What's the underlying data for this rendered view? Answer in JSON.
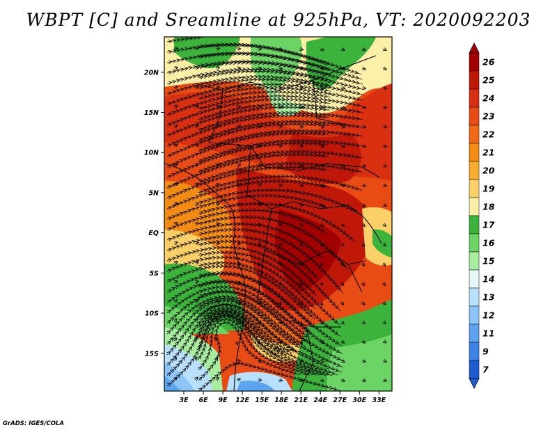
{
  "title": "WBPT [C] and Sreamline at 925hPa, VT: 2020092203",
  "credit": "GrADS: IGES/COLA",
  "map": {
    "lat_labels": [
      "20N",
      "15N",
      "10N",
      "5N",
      "EQ",
      "5S",
      "10S",
      "15S"
    ],
    "lat_values": [
      20,
      15,
      10,
      5,
      0,
      -5,
      -10,
      -15
    ],
    "lon_labels": [
      "3E",
      "6E",
      "9E",
      "12E",
      "15E",
      "18E",
      "21E",
      "24E",
      "27E",
      "30E",
      "33E"
    ],
    "lon_values": [
      3,
      6,
      9,
      12,
      15,
      18,
      21,
      24,
      27,
      30,
      33
    ],
    "lat_range": [
      -19.7,
      24.4
    ],
    "lon_range": [
      0,
      35
    ],
    "variable": "WBPT",
    "units": "C",
    "level": "925hPa",
    "valid_time": "2020092203"
  },
  "colorbar": {
    "labels": [
      "26",
      "25",
      "24",
      "23",
      "22",
      "21",
      "20",
      "19",
      "18",
      "17",
      "16",
      "15",
      "14",
      "13",
      "12",
      "11",
      "9",
      "7"
    ],
    "colors": [
      "#a00000",
      "#c01808",
      "#d83010",
      "#e84c14",
      "#f06a14",
      "#f48c14",
      "#f8ac30",
      "#fcd068",
      "#fcf0a8",
      "#3cb43c",
      "#6cd464",
      "#a8eca0",
      "#e4f8f8",
      "#b8e0fc",
      "#8cc4f8",
      "#5ca4f0",
      "#3c84e4",
      "#1c5ed0"
    ]
  }
}
